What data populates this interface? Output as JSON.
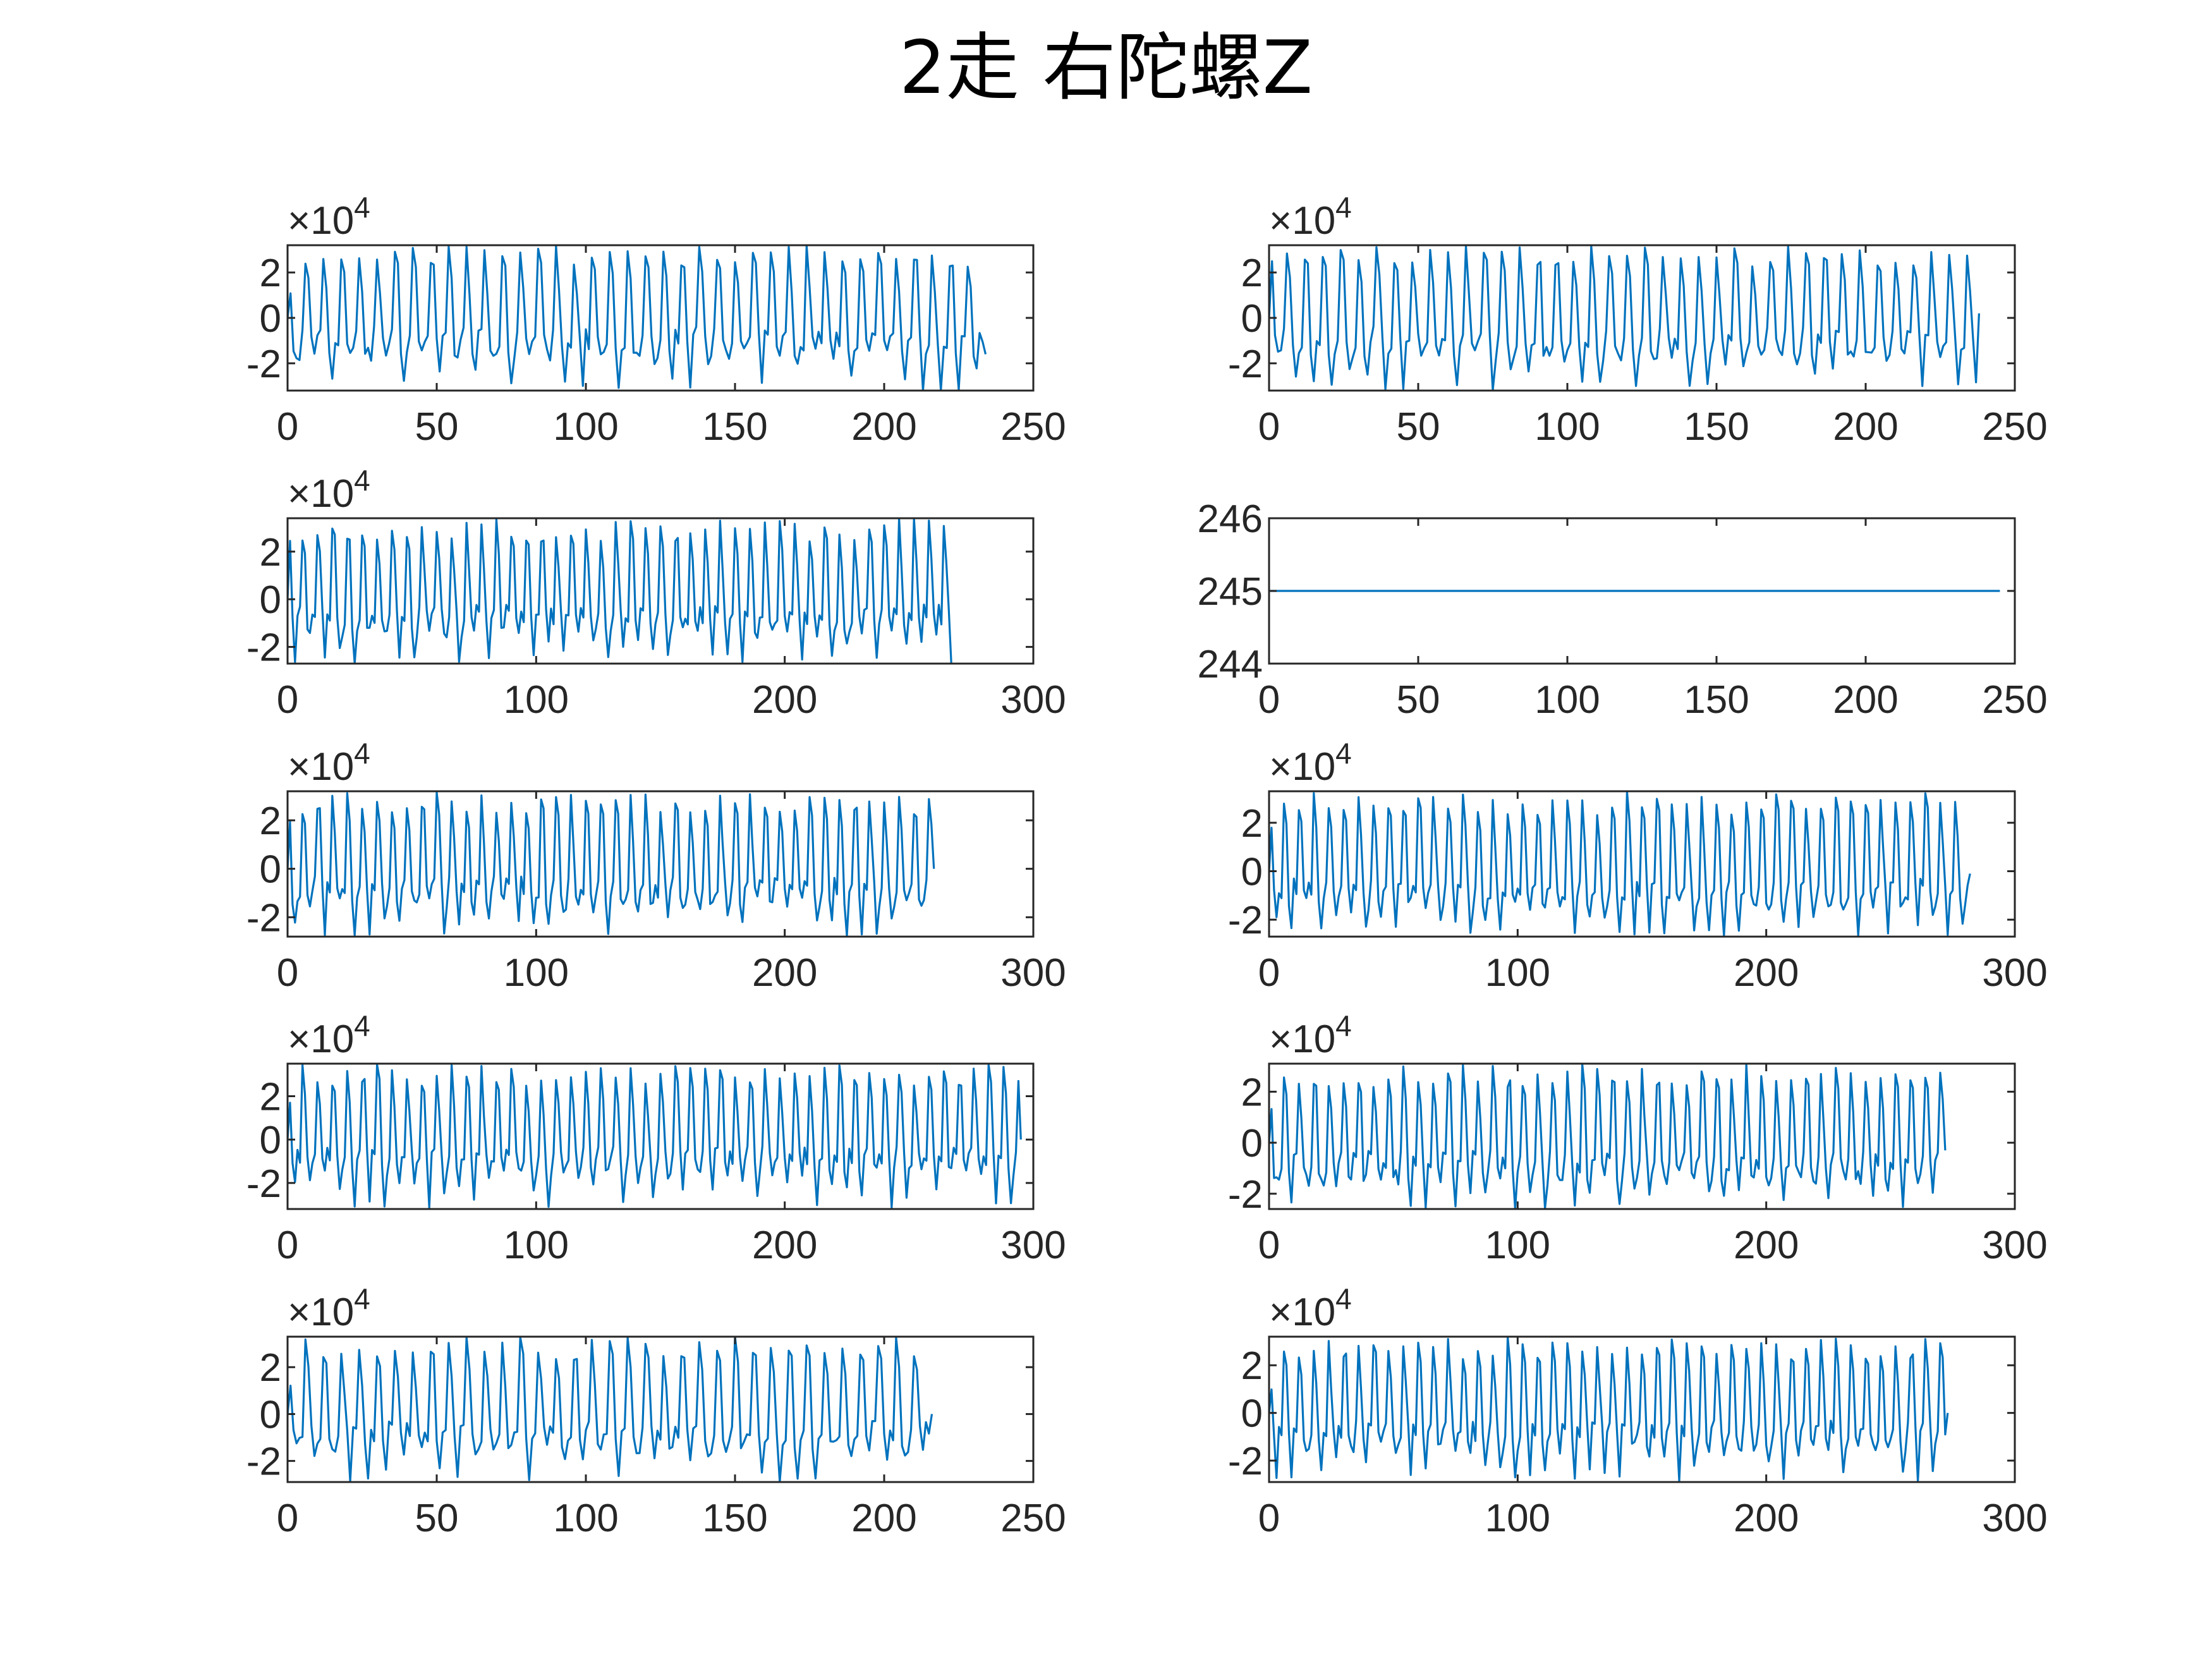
{
  "title": "2走  右陀螺Z",
  "style": {
    "line_color": "#0072BD",
    "axis_color": "#262626",
    "background": "#FFFFFF"
  },
  "chart_data": [
    {
      "type": "line",
      "panel": "row1-left",
      "xlim": [
        0,
        250
      ],
      "xticks": [
        0,
        50,
        100,
        150,
        200,
        250
      ],
      "ylim": [
        -3.2,
        3.2
      ],
      "yticks": [
        -2,
        0,
        2
      ],
      "ytick_labels": [
        "-2",
        "0",
        "2"
      ],
      "y_multiplier": "×10^4",
      "x_extent": 234,
      "baseline": -1.2,
      "amplitude": 3.2,
      "end_value": -1.6
    },
    {
      "type": "line",
      "panel": "row1-right",
      "xlim": [
        0,
        250
      ],
      "xticks": [
        0,
        50,
        100,
        150,
        200,
        250
      ],
      "ylim": [
        -3.2,
        3.2
      ],
      "yticks": [
        -2,
        0,
        2
      ],
      "ytick_labels": [
        "-2",
        "0",
        "2"
      ],
      "y_multiplier": "×10^4",
      "x_extent": 238,
      "baseline": -1.2,
      "amplitude": 3.2,
      "end_value": 0.2
    },
    {
      "type": "line",
      "panel": "row2-left",
      "xlim": [
        0,
        300
      ],
      "xticks": [
        0,
        100,
        200,
        300
      ],
      "ylim": [
        -2.7,
        3.4
      ],
      "yticks": [
        -2,
        0,
        2
      ],
      "ytick_labels": [
        "-2",
        "0",
        "2"
      ],
      "y_multiplier": "×10^4",
      "x_extent": 267,
      "baseline": -0.9,
      "amplitude": 3.4,
      "end_value": -2.7
    },
    {
      "type": "line",
      "panel": "row2-right",
      "xlim": [
        0,
        250
      ],
      "xticks": [
        0,
        50,
        100,
        150,
        200,
        250
      ],
      "ylim": [
        244,
        246
      ],
      "yticks": [
        244,
        245,
        246
      ],
      "ytick_labels": [
        "244",
        "245",
        "246"
      ],
      "y_multiplier": "",
      "x_extent": 245,
      "constant": 245
    },
    {
      "type": "line",
      "panel": "row3-left",
      "xlim": [
        0,
        300
      ],
      "xticks": [
        0,
        100,
        200,
        300
      ],
      "ylim": [
        -2.8,
        3.2
      ],
      "yticks": [
        -2,
        0,
        2
      ],
      "ytick_labels": [
        "-2",
        "0",
        "2"
      ],
      "y_multiplier": "×10^4",
      "x_extent": 260,
      "baseline": -1.0,
      "amplitude": 3.2,
      "end_value": 0.0
    },
    {
      "type": "line",
      "panel": "row3-right",
      "xlim": [
        0,
        300
      ],
      "xticks": [
        0,
        100,
        200,
        300
      ],
      "ylim": [
        -2.7,
        3.3
      ],
      "yticks": [
        -2,
        0,
        2
      ],
      "ytick_labels": [
        "-2",
        "0",
        "2"
      ],
      "y_multiplier": "×10^4",
      "x_extent": 282,
      "baseline": -1.0,
      "amplitude": 3.3,
      "end_value": -0.1
    },
    {
      "type": "line",
      "panel": "row4-left",
      "xlim": [
        0,
        300
      ],
      "xticks": [
        0,
        100,
        200,
        300
      ],
      "ylim": [
        -3.2,
        3.5
      ],
      "yticks": [
        -2,
        0,
        2
      ],
      "ytick_labels": [
        "-2",
        "0",
        "2"
      ],
      "y_multiplier": "×10^4",
      "x_extent": 295,
      "baseline": -1.0,
      "amplitude": 3.5,
      "end_value": 0.0
    },
    {
      "type": "line",
      "panel": "row4-right",
      "xlim": [
        0,
        300
      ],
      "xticks": [
        0,
        100,
        200,
        300
      ],
      "ylim": [
        -2.6,
        3.1
      ],
      "yticks": [
        -2,
        0,
        2
      ],
      "ytick_labels": [
        "-2",
        "0",
        "2"
      ],
      "y_multiplier": "×10^4",
      "x_extent": 272,
      "baseline": -1.0,
      "amplitude": 3.1,
      "end_value": -0.3
    },
    {
      "type": "line",
      "panel": "row5-left",
      "xlim": [
        0,
        250
      ],
      "xticks": [
        0,
        50,
        100,
        150,
        200,
        250
      ],
      "ylim": [
        -2.9,
        3.3
      ],
      "yticks": [
        -2,
        0,
        2
      ],
      "ytick_labels": [
        "-2",
        "0",
        "2"
      ],
      "y_multiplier": "×10^4",
      "x_extent": 216,
      "baseline": -1.0,
      "amplitude": 3.3,
      "end_value": 0.0
    },
    {
      "type": "line",
      "panel": "row5-right",
      "xlim": [
        0,
        300
      ],
      "xticks": [
        0,
        100,
        200,
        300
      ],
      "ylim": [
        -2.9,
        3.2
      ],
      "yticks": [
        -2,
        0,
        2
      ],
      "ytick_labels": [
        "-2",
        "0",
        "2"
      ],
      "y_multiplier": "×10^4",
      "x_extent": 273,
      "baseline": -1.0,
      "amplitude": 3.2,
      "end_value": 0.0
    }
  ]
}
